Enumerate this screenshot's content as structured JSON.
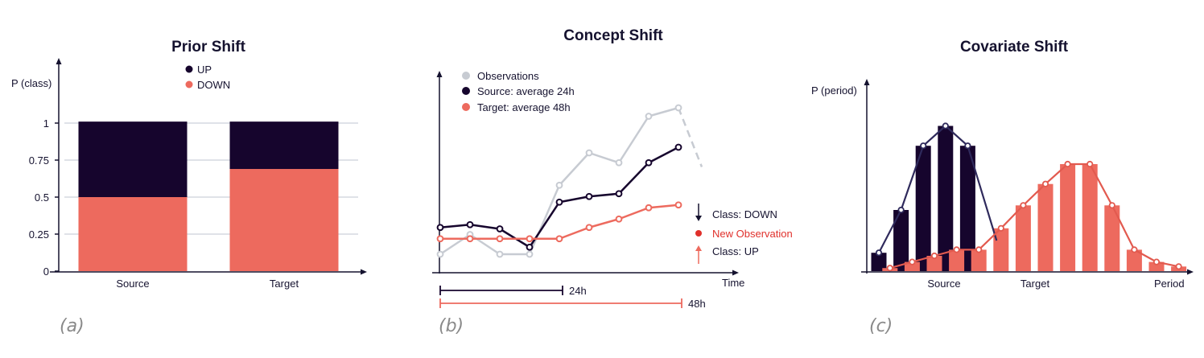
{
  "colors": {
    "up": "#16052d",
    "down": "#ed6a5e",
    "observations": "#c7cbd2",
    "axis": "#15122f",
    "grid": "#dfe2e8",
    "highlight": "#e0302b"
  },
  "panels": {
    "a": {
      "tag": "(a)"
    },
    "b": {
      "tag": "(b)"
    },
    "c": {
      "tag": "(c)"
    }
  },
  "chart_data": [
    {
      "type": "bar",
      "stacked": true,
      "title": "Prior Shift",
      "ylabel": "P (class)",
      "xlabel": "",
      "categories": [
        "Source",
        "Target"
      ],
      "series": [
        {
          "name": "DOWN",
          "color": "#ed6a5e",
          "values": [
            0.5,
            0.69
          ]
        },
        {
          "name": "UP",
          "color": "#16052d",
          "values": [
            0.51,
            0.32
          ]
        }
      ],
      "yticks": [
        "0",
        "0.25",
        "0.5",
        "0.75",
        "1"
      ],
      "ylim": [
        0,
        1.1
      ],
      "grid": true,
      "legend": "top-center"
    },
    {
      "type": "line",
      "title": "Concept Shift",
      "xlabel": "Time",
      "ylabel": "",
      "x": [
        0,
        1,
        2,
        3,
        4,
        5,
        6,
        7,
        8
      ],
      "series": [
        {
          "name": "Observations",
          "color": "#c7cbd2",
          "values": [
            0.08,
            0.22,
            0.08,
            0.08,
            0.57,
            0.8,
            0.73,
            1.06,
            1.12
          ],
          "forecast": 0.7
        },
        {
          "name": "Source: average 24h",
          "color": "#16052d",
          "values": [
            0.27,
            0.29,
            0.26,
            0.13,
            0.45,
            0.49,
            0.51,
            0.73,
            0.84
          ]
        },
        {
          "name": "Target: average 48h",
          "color": "#ed6a5e",
          "values": [
            0.19,
            0.19,
            0.19,
            0.19,
            0.19,
            0.27,
            0.33,
            0.41,
            0.43
          ]
        }
      ],
      "legend": "top-left",
      "annotations": {
        "class_down": "Class: DOWN",
        "new_observation": "New Observation",
        "class_up": "Class: UP",
        "window_short": "24h",
        "window_long": "48h"
      },
      "windows": [
        {
          "label": "24h",
          "from": 0,
          "to": 4
        },
        {
          "label": "48h",
          "from": 0,
          "to": 8
        }
      ]
    },
    {
      "type": "bar",
      "title": "Covariate Shift",
      "ylabel": "P (period)",
      "xlabel": "Period",
      "categories": [
        "Source",
        "Target"
      ],
      "series": [
        {
          "name": "Source",
          "color": "#16052d",
          "x": [
            0,
            2,
            4,
            6,
            8
          ],
          "values": [
            0.12,
            0.4,
            0.82,
            0.95,
            0.82
          ],
          "curve_end": [
            0.2,
            0.2
          ]
        },
        {
          "name": "Target",
          "color": "#ed6a5e",
          "x": [
            1,
            3,
            5,
            7,
            9,
            11,
            13,
            15,
            17,
            19,
            21,
            23,
            25,
            27
          ],
          "values": [
            0.02,
            0.06,
            0.1,
            0.14,
            0.14,
            0.28,
            0.43,
            0.57,
            0.7,
            0.7,
            0.43,
            0.14,
            0.06,
            0.03
          ]
        }
      ],
      "legend": "none"
    }
  ]
}
